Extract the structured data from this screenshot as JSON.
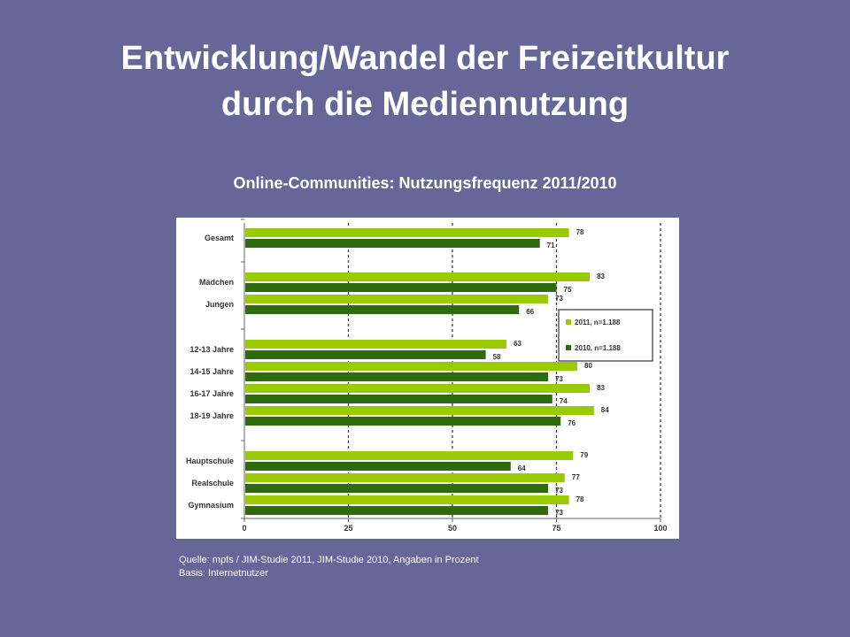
{
  "slide": {
    "title_line1": "Entwicklung/Wandel der Freizeitkultur",
    "title_line2": "durch die Mediennutzung",
    "chart_title": "Online-Communities: Nutzungsfrequenz 2011/2010",
    "source_line1": "Quelle: mpfs / JIM-Studie 2011, JIM-Studie 2010, Angaben in Prozent",
    "source_line2": "Basis: Internetnutzer"
  },
  "colors": {
    "background": "#666699",
    "series_2011": "#99cc00",
    "series_2010": "#2e6b0f"
  },
  "chart_data": {
    "type": "bar",
    "orientation": "horizontal",
    "title": "Online-Communities: Nutzungsfrequenz 2011/2010",
    "categories": [
      "Gesamt",
      "Mädchen",
      "Jungen",
      "12-13 Jahre",
      "14-15 Jahre",
      "16-17 Jahre",
      "18-19 Jahre",
      "Hauptschule",
      "Realschule",
      "Gymnasium"
    ],
    "groups": [
      [
        "Gesamt"
      ],
      [
        "Mädchen",
        "Jungen"
      ],
      [
        "12-13 Jahre",
        "14-15 Jahre",
        "16-17 Jahre",
        "18-19 Jahre"
      ],
      [
        "Hauptschule",
        "Realschule",
        "Gymnasium"
      ]
    ],
    "series": [
      {
        "name": "2011, n=1.188",
        "values": [
          78,
          83,
          73,
          63,
          80,
          83,
          84,
          79,
          77,
          78
        ]
      },
      {
        "name": "2010, n=1.188",
        "values": [
          71,
          75,
          66,
          58,
          73,
          74,
          76,
          64,
          73,
          73
        ]
      }
    ],
    "xlim": [
      0,
      100
    ],
    "xticks": [
      0,
      25,
      50,
      75,
      100
    ],
    "grid": "vertical dashed",
    "legend_position": "right"
  }
}
